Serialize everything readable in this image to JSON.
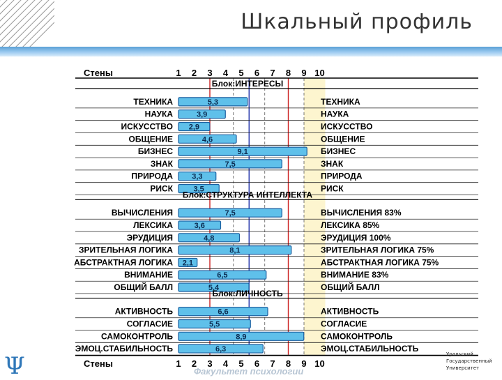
{
  "title": "Шкальный профиль",
  "footer": "Факультет психологии",
  "logo_right_lines": [
    "Уральский",
    "Государственный",
    "Университет"
  ],
  "colors": {
    "bar_fill": "#5fc0ea",
    "bar_stroke": "#1a5fa0",
    "red_lines": "#cc2222",
    "blue_lines": "#2233aa",
    "yellow_band": "#fdf5cf"
  },
  "chart_data": {
    "type": "bar",
    "orientation": "horizontal",
    "scale_label": "Стены",
    "scale_ticks": [
      "1",
      "2",
      "3",
      "4",
      "5",
      "6",
      "7",
      "8",
      "9",
      "10"
    ],
    "xlim": [
      1,
      10
    ],
    "reference_lines": {
      "red": [
        3,
        8
      ],
      "blue": [
        5.5
      ]
    },
    "highlight_band": [
      9,
      10
    ],
    "blocks": [
      {
        "name": "Блок:ИНТЕРЕСЫ",
        "rows": [
          {
            "label": "ТЕХНИКА",
            "value": 5.3,
            "value_label": "5,3",
            "right_label": "ТЕХНИКА"
          },
          {
            "label": "НАУКА",
            "value": 3.9,
            "value_label": "3,9",
            "right_label": "НАУКА"
          },
          {
            "label": "ИСКУССТВО",
            "value": 2.9,
            "value_label": "2,9",
            "right_label": "ИСКУССТВО"
          },
          {
            "label": "ОБЩЕНИЕ",
            "value": 4.6,
            "value_label": "4,6",
            "right_label": "ОБЩЕНИЕ"
          },
          {
            "label": "БИЗНЕС",
            "value": 9.1,
            "value_label": "9,1",
            "right_label": "БИЗНЕС"
          },
          {
            "label": "ЗНАК",
            "value": 7.5,
            "value_label": "7,5",
            "right_label": "ЗНАК"
          },
          {
            "label": "ПРИРОДА",
            "value": 3.3,
            "value_label": "3,3",
            "right_label": "ПРИРОДА"
          },
          {
            "label": "РИСК",
            "value": 3.5,
            "value_label": "3,5",
            "right_label": "РИСК"
          }
        ]
      },
      {
        "name": "Блок:СТРУКТУРА ИНТЕЛЛЕКТА",
        "rows": [
          {
            "label": "ВЫЧИСЛЕНИЯ",
            "value": 7.5,
            "value_label": "7,5",
            "right_label": "ВЫЧИСЛЕНИЯ 83%"
          },
          {
            "label": "ЛЕКСИКА",
            "value": 3.6,
            "value_label": "3,6",
            "right_label": "ЛЕКСИКА 85%"
          },
          {
            "label": "ЭРУДИЦИЯ",
            "value": 4.8,
            "value_label": "4,8",
            "right_label": "ЭРУДИЦИЯ 100%"
          },
          {
            "label": "ЗРИТЕЛЬНАЯ ЛОГИКА",
            "value": 8.1,
            "value_label": "8,1",
            "right_label": "ЗРИТЕЛЬНАЯ ЛОГИКА 75%"
          },
          {
            "label": "АБСТРАКТНАЯ ЛОГИКА",
            "value": 2.1,
            "value_label": "2,1",
            "right_label": "АБСТРАКТНАЯ ЛОГИКА 75%"
          },
          {
            "label": "ВНИМАНИЕ",
            "value": 6.5,
            "value_label": "6,5",
            "right_label": "ВНИМАНИЕ 83%"
          },
          {
            "label": "ОБЩИЙ БАЛЛ",
            "value": 5.4,
            "value_label": "5,4",
            "right_label": "ОБЩИЙ БАЛЛ"
          }
        ]
      },
      {
        "name": "Блок:ЛИЧНОСТЬ",
        "rows": [
          {
            "label": "АКТИВНОСТЬ",
            "value": 6.6,
            "value_label": "6,6",
            "right_label": "АКТИВНОСТЬ"
          },
          {
            "label": "СОГЛАСИЕ",
            "value": 5.5,
            "value_label": "5,5",
            "right_label": "СОГЛАСИЕ"
          },
          {
            "label": "САМОКОНТРОЛЬ",
            "value": 8.9,
            "value_label": "8,9",
            "right_label": "САМОКОНТРОЛЬ"
          },
          {
            "label": "ЭМОЦ.СТАБИЛЬНОСТЬ",
            "value": 6.3,
            "value_label": "6,3",
            "right_label": "ЭМОЦ.СТАБИЛЬНОСТЬ"
          }
        ]
      }
    ]
  }
}
